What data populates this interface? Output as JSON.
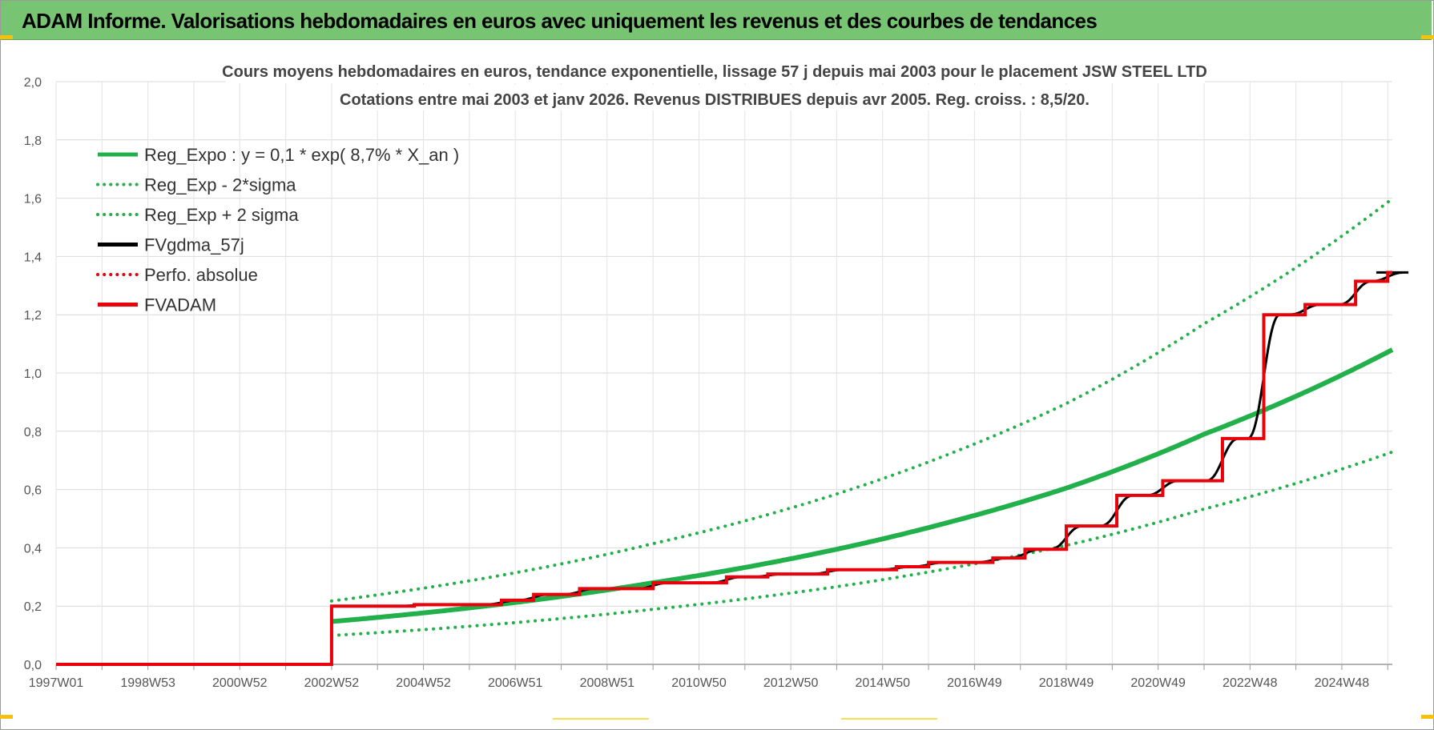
{
  "banner": {
    "title": "ADAM Informe. Valorisations hebdomadaires en euros avec uniquement les revenus et des courbes de tendances"
  },
  "chart_data": {
    "type": "line",
    "title_line1": "Cours moyens hebdomadaires en euros, tendance exponentielle, lissage 57 j depuis mai 2003 pour le placement JSW STEEL LTD",
    "title_line2": "Cotations entre mai 2003 et janv 2026. Revenus DISTRIBUES depuis avr 2005. Reg. croiss. : 8,5/20.",
    "x_ticks": [
      "1997W01",
      "1998W53",
      "2000W52",
      "2002W52",
      "2004W52",
      "2006W51",
      "2008W51",
      "2010W50",
      "2012W50",
      "2014W50",
      "2016W49",
      "2018W49",
      "2020W49",
      "2022W48",
      "2024W48"
    ],
    "x_range": [
      1997.0,
      2026.1
    ],
    "y_ticks": [
      "0,0",
      "0,2",
      "0,4",
      "0,6",
      "0,8",
      "1,0",
      "1,2",
      "1,4",
      "1,6",
      "1,8",
      "2,0"
    ],
    "ylim": [
      0,
      2.0
    ],
    "grid": true,
    "legend_position": "top-left",
    "series": [
      {
        "name": "Reg_Expo : y = 0,1 * exp( 8,7% *  X_an )",
        "color": "#22b04b",
        "style": "solid",
        "kind": "trend",
        "factor": 1.0
      },
      {
        "name": "Reg_Exp - 2*sigma",
        "color": "#22b04b",
        "style": "dotted",
        "kind": "trend",
        "factor": 0.675
      },
      {
        "name": "Reg_Exp + 2 sigma",
        "color": "#22b04b",
        "style": "dotted",
        "kind": "trend",
        "factor": 1.48
      },
      {
        "name": "FVgdma_57j",
        "color": "#000000",
        "style": "solid",
        "kind": "smooth"
      },
      {
        "name": "Perfo. absolue",
        "color": "#e8000b",
        "style": "dotted",
        "kind": "none"
      },
      {
        "name": "FVADAM",
        "color": "#e8000b",
        "style": "solid",
        "kind": "steps"
      }
    ],
    "trend_points": [
      [
        2003.0,
        0.147
      ],
      [
        2010.0,
        0.28
      ],
      [
        2016.5,
        0.49
      ],
      [
        2019.0,
        0.605
      ],
      [
        2022.0,
        0.79
      ],
      [
        2026.1,
        1.08
      ]
    ],
    "fvadam_steps": [
      [
        1997.0,
        0.0
      ],
      [
        2003.0,
        0.2
      ],
      [
        2004.8,
        0.205
      ],
      [
        2006.7,
        0.22
      ],
      [
        2007.4,
        0.24
      ],
      [
        2008.4,
        0.26
      ],
      [
        2010.0,
        0.28
      ],
      [
        2011.6,
        0.3
      ],
      [
        2012.5,
        0.31
      ],
      [
        2013.8,
        0.325
      ],
      [
        2015.3,
        0.335
      ],
      [
        2016.0,
        0.35
      ],
      [
        2017.4,
        0.365
      ],
      [
        2018.1,
        0.395
      ],
      [
        2019.0,
        0.475
      ],
      [
        2020.1,
        0.58
      ],
      [
        2021.1,
        0.63
      ],
      [
        2022.4,
        0.775
      ],
      [
        2023.3,
        1.2
      ],
      [
        2024.2,
        1.235
      ],
      [
        2025.3,
        1.315
      ],
      [
        2026.0,
        1.345
      ],
      [
        2026.1,
        1.345
      ]
    ]
  }
}
